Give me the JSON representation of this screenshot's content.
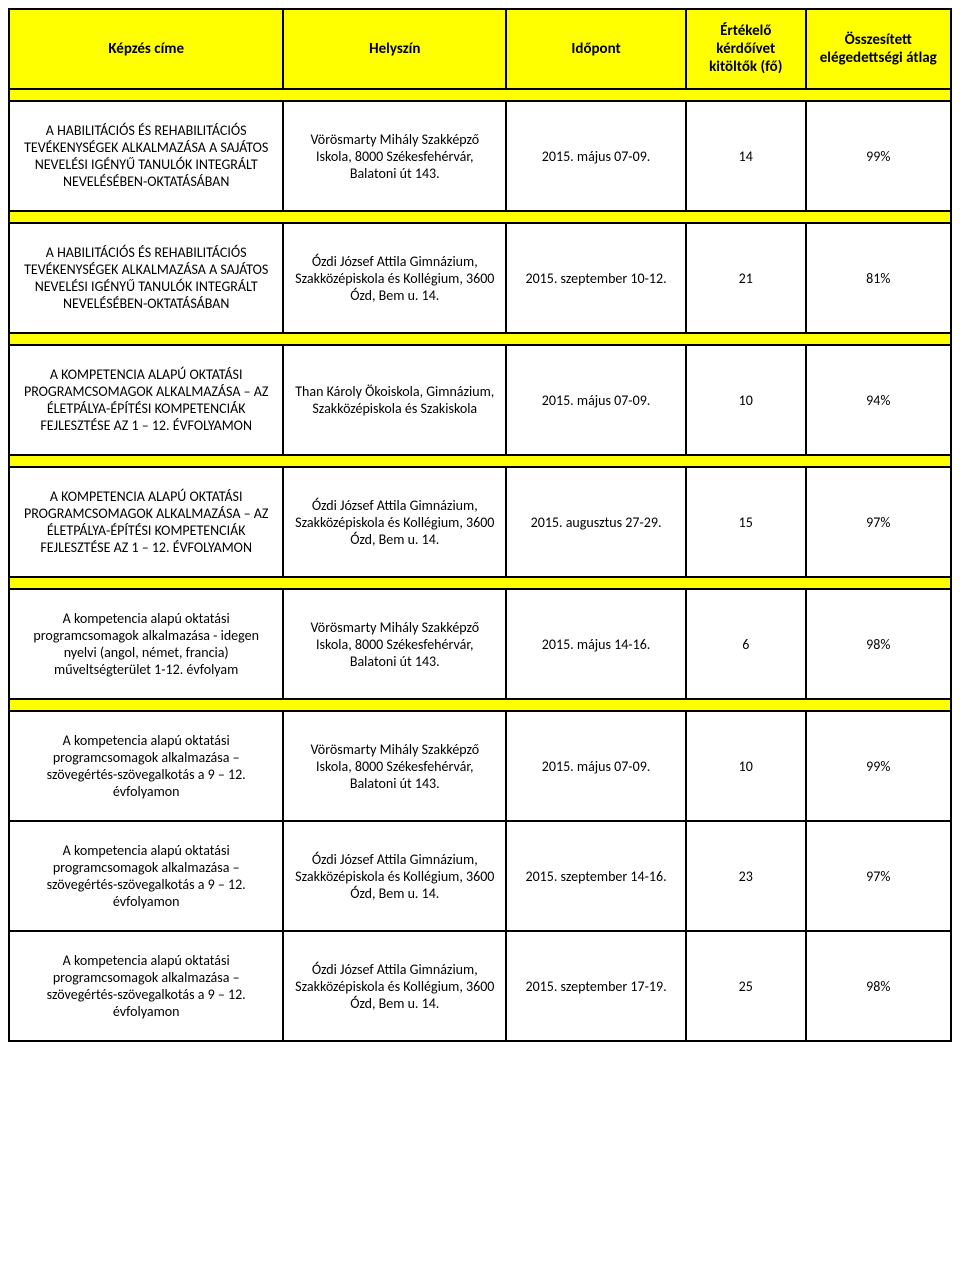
{
  "columns": [
    {
      "label": "Képzés címe"
    },
    {
      "label": "Helyszín"
    },
    {
      "label": "Időpont"
    },
    {
      "label": "Értékelő kérdőívet kitöltők (fő)"
    },
    {
      "label": "Összesített elégedettségi átlag"
    }
  ],
  "groups": [
    {
      "rows": [
        {
          "title": "A HABILITÁCIÓS ÉS REHABILITÁCIÓS TEVÉKENYSÉGEK ALKALMAZÁSA A SAJÁTOS NEVELÉSI IGÉNYŰ TANULÓK INTEGRÁLT NEVELÉSÉBEN-OKTATÁSÁBAN",
          "location": "Vörösmarty Mihály Szakképző Iskola, 8000 Székesfehérvár, Balatoni út 143.",
          "date": "2015. május 07-09.",
          "count": "14",
          "avg": "99%"
        }
      ]
    },
    {
      "rows": [
        {
          "title": "A HABILITÁCIÓS ÉS REHABILITÁCIÓS TEVÉKENYSÉGEK ALKALMAZÁSA A SAJÁTOS NEVELÉSI IGÉNYŰ TANULÓK INTEGRÁLT NEVELÉSÉBEN-OKTATÁSÁBAN",
          "location": "Ózdi József Attila Gimnázium, Szakközépiskola és Kollégium, 3600 Ózd, Bem u. 14.",
          "date": "2015. szeptember 10-12.",
          "count": "21",
          "avg": "81%"
        }
      ]
    },
    {
      "rows": [
        {
          "title": "A KOMPETENCIA ALAPÚ OKTATÁSI PROGRAMCSOMAGOK ALKALMAZÁSA – AZ ÉLETPÁLYA-ÉPÍTÉSI KOMPETENCIÁK FEJLESZTÉSE AZ 1 – 12. ÉVFOLYAMON",
          "location": "Than Károly Ökoiskola, Gimnázium, Szakközépiskola és Szakiskola",
          "date": "2015. május 07-09.",
          "count": "10",
          "avg": "94%"
        }
      ]
    },
    {
      "rows": [
        {
          "title": "A KOMPETENCIA ALAPÚ OKTATÁSI PROGRAMCSOMAGOK ALKALMAZÁSA – AZ ÉLETPÁLYA-ÉPÍTÉSI KOMPETENCIÁK FEJLESZTÉSE AZ 1 – 12. ÉVFOLYAMON",
          "location": "Ózdi József Attila Gimnázium, Szakközépiskola és Kollégium, 3600 Ózd, Bem u. 14.",
          "date": "2015. augusztus 27-29.",
          "count": "15",
          "avg": "97%"
        }
      ]
    },
    {
      "rows": [
        {
          "title": "A kompetencia alapú oktatási programcsomagok alkalmazása - idegen nyelvi (angol, német, francia) műveltségterület 1-12. évfolyam",
          "location": "Vörösmarty Mihály Szakképző Iskola, 8000 Székesfehérvár, Balatoni út 143.",
          "date": "2015. május 14-16.",
          "count": "6",
          "avg": "98%"
        }
      ]
    },
    {
      "rows": [
        {
          "title": "A kompetencia alapú oktatási programcsomagok alkalmazása – szövegértés-szövegalkotás a 9 – 12. évfolyamon",
          "location": "Vörösmarty Mihály Szakképző Iskola, 8000 Székesfehérvár, Balatoni út 143.",
          "date": "2015. május 07-09.",
          "count": "10",
          "avg": "99%"
        },
        {
          "title": "A kompetencia alapú oktatási programcsomagok alkalmazása – szövegértés-szövegalkotás a 9 – 12. évfolyamon",
          "location": "Ózdi József Attila Gimnázium, Szakközépiskola és Kollégium, 3600 Ózd, Bem u. 14.",
          "date": "2015. szeptember 14-16.",
          "count": "23",
          "avg": "97%"
        },
        {
          "title": "A kompetencia alapú oktatási programcsomagok alkalmazása – szövegértés-szövegalkotás a 9 – 12. évfolyamon",
          "location": "Ózdi József Attila Gimnázium, Szakközépiskola és Kollégium, 3600 Ózd, Bem u. 14.",
          "date": "2015. szeptember 17-19.",
          "count": "25",
          "avg": "98%"
        }
      ]
    }
  ],
  "style": {
    "header_bg": "#ffff00",
    "spacer_bg": "#ffff00",
    "border_color": "#000000",
    "cell_bg": "#ffffff",
    "header_fontsize": 15,
    "cell_fontsize": 14
  }
}
